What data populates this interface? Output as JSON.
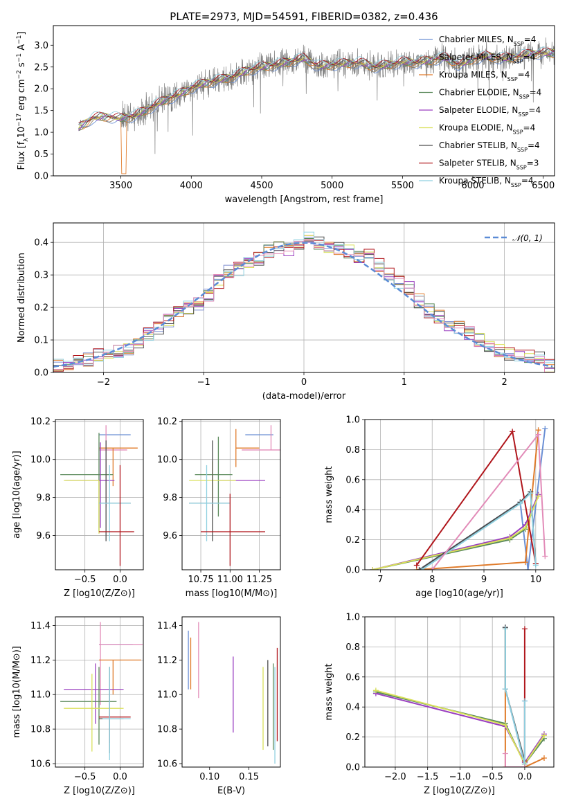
{
  "chart_data": [
    {
      "id": "spectrum",
      "type": "line",
      "title": "PLATE=2973, MJD=54591, FIBERID=0382, z=0.436",
      "xlabel": "wavelength [Angstrom, rest frame]",
      "ylabel": "Flux [f_λ10^-17 erg cm^-2 s^-1 A^-1]",
      "xlim": [
        3020,
        6580
      ],
      "ylim": [
        0,
        3.45
      ],
      "xticks": [
        3500,
        4000,
        4500,
        5000,
        5500,
        6000,
        6500
      ],
      "yticks": [
        0.0,
        0.5,
        1.0,
        1.5,
        2.0,
        2.5,
        3.0
      ],
      "grid": false,
      "legend_position": "right",
      "legend": [
        {
          "name": "Chabrier MILES, N_SSP=4",
          "color": "#6a8fd4"
        },
        {
          "name": "Salpeter MILES, N_SSP=4",
          "color": "#8d7a5a"
        },
        {
          "name": "Kroupa MILES, N_SSP=4",
          "color": "#e07b2a"
        },
        {
          "name": "Chabrier ELODIE, N_SSP=4",
          "color": "#5b8a5b"
        },
        {
          "name": "Salpeter ELODIE, N_SSP=4",
          "color": "#9a3fc0"
        },
        {
          "name": "Kroupa ELODIE, N_SSP=4",
          "color": "#d9e05a"
        },
        {
          "name": "Chabrier STELIB, N_SSP=4",
          "color": "#4d4d4d"
        },
        {
          "name": "Salpeter STELIB, N_SSP=3",
          "color": "#b0161c"
        },
        {
          "name": "Kroupa STELIB, N_SSP=4",
          "color": "#8fd0e0"
        }
      ],
      "data_series": {
        "name": "",
        "color": "#7f7f7f"
      },
      "continuum": {
        "x": [
          3200,
          3300,
          3400,
          3500,
          3600,
          3700,
          3800,
          3900,
          4000,
          4100,
          4200,
          4300,
          4400,
          4500,
          4600,
          4700,
          4800,
          4900,
          5000,
          5100,
          5200,
          5300,
          5400,
          5500,
          5600,
          5700,
          5800,
          5900,
          6000,
          6100,
          6200,
          6300,
          6400,
          6500
        ],
        "y": [
          1.1,
          1.33,
          1.36,
          1.32,
          1.38,
          1.55,
          1.72,
          1.85,
          2.02,
          2.13,
          2.2,
          2.28,
          2.42,
          2.5,
          2.55,
          2.62,
          2.7,
          2.52,
          2.55,
          2.58,
          2.6,
          2.5,
          2.55,
          2.62,
          2.6,
          2.65,
          2.72,
          2.55,
          2.68,
          2.75,
          2.7,
          2.72,
          2.8,
          2.82
        ]
      }
    },
    {
      "id": "residuals",
      "type": "line",
      "title": "",
      "xlabel": "(data-model)/error",
      "ylabel": "Normed distribution",
      "xlim": [
        -2.5,
        2.5
      ],
      "ylim": [
        0,
        0.46
      ],
      "xticks": [
        -2,
        -1,
        0,
        1,
        2
      ],
      "yticks": [
        0.0,
        0.1,
        0.2,
        0.3,
        0.4
      ],
      "grid": true,
      "legend_position": "top-right",
      "legend": [
        {
          "name": "𝒩(0, 1)",
          "color": "#5b8bd6"
        }
      ],
      "bins": [
        -2.5,
        -2.4,
        -2.3,
        -2.2,
        -2.1,
        -2.0,
        -1.9,
        -1.8,
        -1.7,
        -1.6,
        -1.5,
        -1.4,
        -1.3,
        -1.2,
        -1.1,
        -1.0,
        -0.9,
        -0.8,
        -0.7,
        -0.6,
        -0.5,
        -0.4,
        -0.3,
        -0.2,
        -0.1,
        0.0,
        0.1,
        0.2,
        0.3,
        0.4,
        0.5,
        0.6,
        0.7,
        0.8,
        0.9,
        1.0,
        1.1,
        1.2,
        1.3,
        1.4,
        1.5,
        1.6,
        1.7,
        1.8,
        1.9,
        2.0,
        2.1,
        2.2,
        2.3,
        2.4,
        2.5
      ],
      "hist_mean": [
        0.025,
        0.028,
        0.035,
        0.04,
        0.055,
        0.06,
        0.065,
        0.07,
        0.09,
        0.12,
        0.14,
        0.16,
        0.19,
        0.2,
        0.21,
        0.24,
        0.28,
        0.31,
        0.32,
        0.34,
        0.35,
        0.37,
        0.38,
        0.38,
        0.4,
        0.41,
        0.4,
        0.39,
        0.38,
        0.37,
        0.36,
        0.36,
        0.33,
        0.3,
        0.28,
        0.26,
        0.22,
        0.19,
        0.17,
        0.15,
        0.14,
        0.12,
        0.1,
        0.08,
        0.07,
        0.06,
        0.055,
        0.05,
        0.045,
        0.02
      ],
      "histogram_colors": [
        "#7f8fd0",
        "#e07b2a",
        "#5b8a5b",
        "#9a3fc0",
        "#d9e05a",
        "#4d4d4d",
        "#b0161c",
        "#8fd0e0",
        "#e28bb8"
      ]
    },
    {
      "id": "age_vs_Z",
      "type": "scatter",
      "xlabel": "Z [log10(Z/Z⊙)]",
      "ylabel": "age  [log10(age/yr)]",
      "xlim": [
        -0.92,
        0.33
      ],
      "ylim": [
        9.42,
        10.21
      ],
      "xticks": [
        -0.5,
        0.0
      ],
      "yticks": [
        9.6,
        9.8,
        10.0,
        10.2
      ],
      "grid": true,
      "errorbars": [
        {
          "color": "#6a8fd4",
          "x": 0.0,
          "xerr": [
            0.3,
            0.15
          ],
          "y": 10.13,
          "yerr": [
            0.0,
            0.0
          ]
        },
        {
          "color": "#e28bb8",
          "x": -0.2,
          "xerr": [
            0.1,
            0.3
          ],
          "y": 10.05,
          "yerr": [
            0.3,
            0.13
          ]
        },
        {
          "color": "#e07b2a",
          "x": -0.1,
          "xerr": [
            0.2,
            0.35
          ],
          "y": 10.06,
          "yerr": [
            0.2,
            0.0
          ]
        },
        {
          "color": "#5b8a5b",
          "x": -0.3,
          "xerr": [
            0.55,
            0.2
          ],
          "y": 9.92,
          "yerr": [
            0.3,
            0.22
          ]
        },
        {
          "color": "#9a3fc0",
          "x": -0.28,
          "xerr": [
            0.5,
            0.2
          ],
          "y": 9.89,
          "yerr": [
            0.25,
            0.2
          ]
        },
        {
          "color": "#d9e05a",
          "x": -0.3,
          "xerr": [
            0.5,
            0.0
          ],
          "y": 9.89,
          "yerr": [
            0.28,
            0.0
          ]
        },
        {
          "color": "#4d4d4d",
          "x": -0.2,
          "xerr": [
            0.1,
            0.35
          ],
          "y": 9.77,
          "yerr": [
            0.2,
            0.33
          ]
        },
        {
          "color": "#8fd0e0",
          "x": -0.15,
          "xerr": [
            0.15,
            0.3
          ],
          "y": 9.77,
          "yerr": [
            0.2,
            0.2
          ]
        },
        {
          "color": "#b0161c",
          "x": 0.0,
          "xerr": [
            0.3,
            0.2
          ],
          "y": 9.62,
          "yerr": [
            0.18,
            0.35
          ]
        }
      ]
    },
    {
      "id": "age_vs_mass",
      "type": "scatter",
      "xlabel": "mass [log10(M/M⊙)]",
      "ylabel": "",
      "xlim": [
        10.59,
        11.43
      ],
      "ylim": [
        9.42,
        10.21
      ],
      "xticks": [
        10.75,
        11.0,
        11.25
      ],
      "yticks": [
        9.6,
        9.8,
        10.0,
        10.2
      ],
      "grid": true,
      "errorbars": [
        {
          "color": "#6a8fd4",
          "x": 11.25,
          "xerr": [
            0.12,
            0.12
          ],
          "y": 10.13,
          "yerr": [
            0.0,
            0.0
          ]
        },
        {
          "color": "#e28bb8",
          "x": 11.35,
          "xerr": [
            0.25,
            0.12
          ],
          "y": 10.05,
          "yerr": [
            0.0,
            0.13
          ]
        },
        {
          "color": "#e07b2a",
          "x": 11.05,
          "xerr": [
            0.0,
            0.2
          ],
          "y": 10.06,
          "yerr": [
            0.1,
            0.1
          ]
        },
        {
          "color": "#5b8a5b",
          "x": 10.9,
          "xerr": [
            0.2,
            0.12
          ],
          "y": 9.92,
          "yerr": [
            0.22,
            0.2
          ]
        },
        {
          "color": "#9a3fc0",
          "x": 11.1,
          "xerr": [
            0.2,
            0.2
          ],
          "y": 9.89,
          "yerr": [
            0.0,
            0.0
          ]
        },
        {
          "color": "#d9e05a",
          "x": 10.85,
          "xerr": [
            0.2,
            0.2
          ],
          "y": 9.89,
          "yerr": [
            0.1,
            0.1
          ]
        },
        {
          "color": "#4d4d4d",
          "x": 10.85,
          "xerr": [
            0.2,
            0.15
          ],
          "y": 9.77,
          "yerr": [
            0.2,
            0.33
          ]
        },
        {
          "color": "#8fd0e0",
          "x": 10.8,
          "xerr": [
            0.15,
            0.2
          ],
          "y": 9.77,
          "yerr": [
            0.2,
            0.2
          ]
        },
        {
          "color": "#b0161c",
          "x": 11.0,
          "xerr": [
            0.25,
            0.3
          ],
          "y": 9.62,
          "yerr": [
            0.18,
            0.2
          ]
        }
      ]
    },
    {
      "id": "weight_vs_age",
      "type": "line",
      "xlabel": "age  [log10(age/yr)]",
      "ylabel": "mass weight",
      "xlim": [
        6.7,
        10.35
      ],
      "ylim": [
        0,
        1.0
      ],
      "xticks": [
        7,
        8,
        9,
        10
      ],
      "yticks": [
        0.0,
        0.2,
        0.4,
        0.6,
        0.8,
        1.0
      ],
      "grid": true,
      "series": [
        {
          "color": "#6a8fd4",
          "x": [
            7.75,
            9.7,
            9.85,
            10.18
          ],
          "y": [
            0.0,
            0.45,
            0.0,
            0.94
          ]
        },
        {
          "color": "#e07b2a",
          "x": [
            7.7,
            9.8,
            10.05
          ],
          "y": [
            0.0,
            0.05,
            0.93
          ]
        },
        {
          "color": "#5b8a5b",
          "x": [
            6.85,
            9.5,
            9.8,
            10.05
          ],
          "y": [
            0.0,
            0.2,
            0.27,
            0.5
          ]
        },
        {
          "color": "#9a3fc0",
          "x": [
            6.85,
            9.5,
            9.8,
            10.05
          ],
          "y": [
            0.0,
            0.22,
            0.3,
            0.5
          ]
        },
        {
          "color": "#d9e05a",
          "x": [
            6.85,
            9.5,
            9.8,
            10.05
          ],
          "y": [
            0.0,
            0.21,
            0.28,
            0.49
          ]
        },
        {
          "color": "#4d4d4d",
          "x": [
            7.75,
            9.7,
            9.9,
            10.0
          ],
          "y": [
            0.0,
            0.45,
            0.52,
            0.04
          ]
        },
        {
          "color": "#b0161c",
          "x": [
            7.7,
            9.55,
            10.0
          ],
          "y": [
            0.03,
            0.92,
            0.04
          ]
        },
        {
          "color": "#8fd0e0",
          "x": [
            7.8,
            9.7,
            9.9,
            10.0
          ],
          "y": [
            0.0,
            0.44,
            0.51,
            0.03
          ]
        },
        {
          "color": "#e28bb8",
          "x": [
            8.0,
            10.05,
            10.18
          ],
          "y": [
            0.0,
            0.9,
            0.09
          ]
        }
      ]
    },
    {
      "id": "mass_vs_Z",
      "type": "scatter",
      "xlabel": "Z [log10(Z/Z⊙)]",
      "ylabel": "mass [log10(M/M⊙)]",
      "xlim": [
        -0.92,
        0.33
      ],
      "ylim": [
        10.58,
        11.45
      ],
      "xticks": [
        -0.5,
        0.0
      ],
      "yticks": [
        10.6,
        10.8,
        11.0,
        11.2,
        11.4
      ],
      "grid": true,
      "errorbars": [
        {
          "color": "#6a8fd4",
          "x": 0.0,
          "xerr": [
            0.3,
            0.18
          ],
          "y": 11.29,
          "yerr": [
            0.0,
            0.0
          ]
        },
        {
          "color": "#e28bb8",
          "x": -0.28,
          "xerr": [
            0.02,
            0.6
          ],
          "y": 11.29,
          "yerr": [
            0.35,
            0.13
          ]
        },
        {
          "color": "#e07b2a",
          "x": -0.1,
          "xerr": [
            0.2,
            0.4
          ],
          "y": 11.2,
          "yerr": [
            0.2,
            0.0
          ]
        },
        {
          "color": "#9a3fc0",
          "x": -0.35,
          "xerr": [
            0.45,
            0.4
          ],
          "y": 11.03,
          "yerr": [
            0.2,
            0.15
          ]
        },
        {
          "color": "#5b8a5b",
          "x": -0.3,
          "xerr": [
            0.55,
            0.25
          ],
          "y": 10.96,
          "yerr": [
            0.25,
            0.2
          ]
        },
        {
          "color": "#d9e05a",
          "x": -0.4,
          "xerr": [
            0.4,
            0.45
          ],
          "y": 10.92,
          "yerr": [
            0.25,
            0.2
          ]
        },
        {
          "color": "#b0161c",
          "x": -0.15,
          "xerr": [
            0.15,
            0.3
          ],
          "y": 10.87,
          "yerr": [
            0.15,
            0.15
          ]
        },
        {
          "color": "#4d4d4d",
          "x": -0.15,
          "xerr": [
            0.15,
            0.2
          ],
          "y": 10.86,
          "yerr": [
            0.2,
            0.3
          ]
        },
        {
          "color": "#8fd0e0",
          "x": -0.15,
          "xerr": [
            0.1,
            0.3
          ],
          "y": 10.86,
          "yerr": [
            0.24,
            0.3
          ]
        }
      ]
    },
    {
      "id": "mass_vs_ebv",
      "type": "scatter",
      "xlabel": "E(B-V)",
      "ylabel": "",
      "xlim": [
        0.065,
        0.19
      ],
      "ylim": [
        10.58,
        11.45
      ],
      "xticks": [
        0.1,
        0.15
      ],
      "yticks": [
        10.6,
        10.8,
        11.0,
        11.2,
        11.4
      ],
      "grid": false,
      "errorbars": [
        {
          "color": "#6a8fd4",
          "x": 0.073,
          "y": 11.2,
          "yerr": [
            0.17,
            0.17
          ]
        },
        {
          "color": "#e07b2a",
          "x": 0.076,
          "y": 11.18,
          "yerr": [
            0.15,
            0.15
          ]
        },
        {
          "color": "#e28bb8",
          "x": 0.086,
          "y": 11.2,
          "yerr": [
            0.22,
            0.22
          ]
        },
        {
          "color": "#9a3fc0",
          "x": 0.13,
          "y": 11.0,
          "yerr": [
            0.22,
            0.22
          ]
        },
        {
          "color": "#d9e05a",
          "x": 0.168,
          "y": 10.92,
          "yerr": [
            0.24,
            0.24
          ]
        },
        {
          "color": "#4d4d4d",
          "x": 0.174,
          "y": 10.95,
          "yerr": [
            0.25,
            0.25
          ]
        },
        {
          "color": "#5b8a5b",
          "x": 0.181,
          "y": 10.93,
          "yerr": [
            0.25,
            0.25
          ]
        },
        {
          "color": "#8fd0e0",
          "x": 0.183,
          "y": 10.88,
          "yerr": [
            0.28,
            0.28
          ]
        },
        {
          "color": "#b0161c",
          "x": 0.186,
          "y": 11.0,
          "yerr": [
            0.27,
            0.27
          ]
        }
      ]
    },
    {
      "id": "weight_vs_Z",
      "type": "line",
      "xlabel": "Z [log10(Z/Z⊙)]",
      "ylabel": "mass weight",
      "xlim": [
        -2.47,
        0.45
      ],
      "ylim": [
        0,
        1.0
      ],
      "xticks": [
        -2.0,
        -1.5,
        -1.0,
        -0.5,
        0.0
      ],
      "yticks": [
        0.0,
        0.2,
        0.4,
        0.6,
        0.8,
        1.0
      ],
      "grid": true,
      "series": [
        {
          "color": "#6a8fd4",
          "x": [
            -0.3,
            -0.3,
            0.0,
            0.0
          ],
          "y": [
            0.93,
            0.52,
            0.02,
            0.44
          ]
        },
        {
          "color": "#e07b2a",
          "x": [
            -0.3,
            -0.3,
            0.0,
            0.3
          ],
          "y": [
            0.92,
            0.0,
            0.0,
            0.06
          ]
        },
        {
          "color": "#5b8a5b",
          "x": [
            -2.3,
            -0.3,
            0.0,
            0.3
          ],
          "y": [
            0.5,
            0.29,
            0.02,
            0.19
          ]
        },
        {
          "color": "#9a3fc0",
          "x": [
            -2.3,
            -0.3,
            0.0,
            0.3
          ],
          "y": [
            0.49,
            0.27,
            0.03,
            0.22
          ]
        },
        {
          "color": "#d9e05a",
          "x": [
            -2.3,
            -0.3,
            0.0,
            0.3
          ],
          "y": [
            0.51,
            0.28,
            0.02,
            0.21
          ]
        },
        {
          "color": "#4d4d4d",
          "x": [
            -0.3,
            -0.3,
            0.0
          ],
          "y": [
            0.93,
            0.52,
            0.04
          ]
        },
        {
          "color": "#b0161c",
          "x": [
            0.0,
            0.0
          ],
          "y": [
            0.92,
            0.04
          ]
        },
        {
          "color": "#8fd0e0",
          "x": [
            -0.3,
            -0.3,
            0.0,
            0.0
          ],
          "y": [
            0.92,
            0.52,
            0.02,
            0.44
          ]
        },
        {
          "color": "#e28bb8",
          "x": [
            -0.3,
            -0.3,
            0.0
          ],
          "y": [
            0.09,
            0.0,
            0.0
          ]
        }
      ]
    }
  ]
}
